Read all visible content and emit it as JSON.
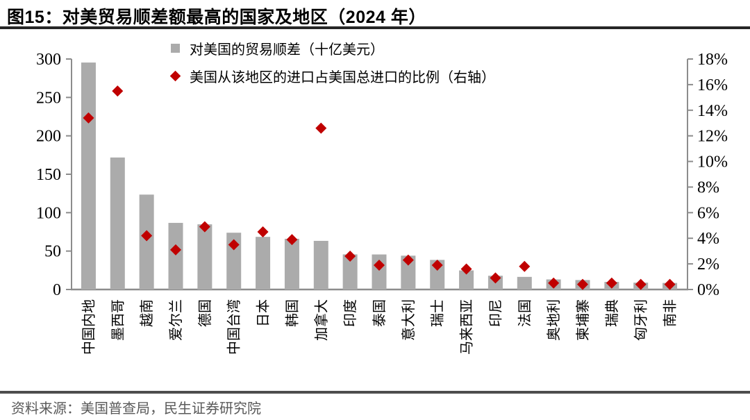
{
  "header": {
    "title": "图15：对美贸易顺差额最高的国家及地区（2024 年）"
  },
  "source": {
    "label": "资料来源：美国普查局，民生证券研究院"
  },
  "colors": {
    "bar": "#ABABAB",
    "diamond": "#C00000",
    "axis": "#8C8C8C",
    "tick_label": "#000000"
  },
  "chart_data": {
    "type": "bar",
    "title": "对美贸易顺差额最高的国家及地区（2024 年）",
    "categories": [
      "中国内地",
      "墨西哥",
      "越南",
      "爱尔兰",
      "德国",
      "中国台湾",
      "日本",
      "韩国",
      "加拿大",
      "印度",
      "泰国",
      "意大利",
      "瑞士",
      "马来西亚",
      "印尼",
      "法国",
      "奥地利",
      "柬埔寨",
      "瑞典",
      "匈牙利",
      "南非"
    ],
    "series": [
      {
        "name": "对美国的贸易顺差（十亿美元）",
        "type": "bar",
        "axis": "left",
        "color": "#ABABAB",
        "values": [
          295.4,
          171.8,
          123.5,
          86.7,
          84.8,
          73.9,
          68.5,
          66.0,
          63.3,
          45.7,
          45.6,
          44.0,
          38.5,
          24.8,
          17.9,
          16.4,
          13.1,
          12.3,
          9.9,
          8.9,
          8.5
        ]
      },
      {
        "name": "美国从该地区的进口占美国总进口的比例（右轴）",
        "type": "scatter",
        "marker": "diamond",
        "axis": "right",
        "color": "#C00000",
        "values": [
          13.4,
          15.5,
          4.2,
          3.1,
          4.9,
          3.5,
          4.5,
          3.9,
          12.6,
          2.6,
          1.9,
          2.3,
          1.9,
          1.6,
          0.9,
          1.8,
          0.5,
          0.4,
          0.5,
          0.4,
          0.4
        ]
      }
    ],
    "left_axis": {
      "min": 0,
      "max": 300,
      "step": 50,
      "ticks": [
        "0",
        "50",
        "100",
        "150",
        "200",
        "250",
        "300"
      ]
    },
    "right_axis": {
      "min": 0,
      "max": 18,
      "step": 2,
      "ticks": [
        "0%",
        "2%",
        "4%",
        "6%",
        "8%",
        "10%",
        "12%",
        "14%",
        "16%",
        "18%"
      ]
    },
    "grid": false,
    "legend_position": "top-left-inside"
  }
}
